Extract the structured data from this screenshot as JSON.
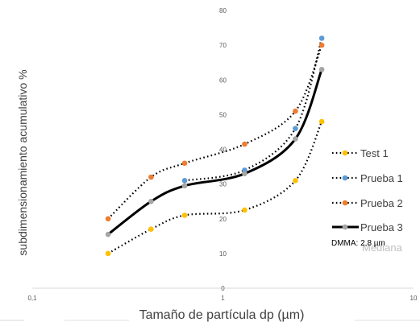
{
  "chart_data": {
    "type": "line",
    "title": "",
    "xlabel": "Tamaño de partícula dp (µm)",
    "ylabel": "subdimensionamiento acumulativo %",
    "x_scale": "log",
    "xlim": [
      0.1,
      10
    ],
    "ylim": [
      0,
      80
    ],
    "x_tick_labels": [
      "0,1",
      "1",
      "10"
    ],
    "y_tick_labels": [
      "0",
      "10",
      "20",
      "30",
      "40",
      "50",
      "60",
      "70",
      "80"
    ],
    "grid": false,
    "legend_position": "right",
    "series": [
      {
        "name": "Test 1",
        "color": "#FFC000",
        "line_style": "dotted",
        "x": [
          0.25,
          0.42,
          0.63,
          1.3,
          2.4,
          3.3
        ],
        "y": [
          10,
          17,
          21,
          22.5,
          31,
          48
        ]
      },
      {
        "name": "Prueba 1",
        "color": "#5B9BD5",
        "line_style": "dotted",
        "x": [
          0.63,
          1.3,
          2.4,
          3.3
        ],
        "y": [
          31,
          34,
          46,
          72
        ]
      },
      {
        "name": "Prueba 2",
        "color": "#ED7D31",
        "line_style": "dotted",
        "x": [
          0.25,
          0.42,
          0.63,
          1.3,
          2.4,
          3.3
        ],
        "y": [
          20,
          32,
          36,
          41.5,
          51,
          70
        ]
      },
      {
        "name": "Prueba 3",
        "color": "#A5A5A5",
        "line_style": "solid-thick",
        "line_color": "#000000",
        "x": [
          0.25,
          0.42,
          0.63,
          1.3,
          2.4,
          3.3
        ],
        "y": [
          15.5,
          25,
          29.5,
          33,
          43,
          63
        ]
      }
    ],
    "annotations": [
      {
        "text": "DMMA: 2,8 µm"
      },
      {
        "text": "Mediana"
      }
    ]
  }
}
